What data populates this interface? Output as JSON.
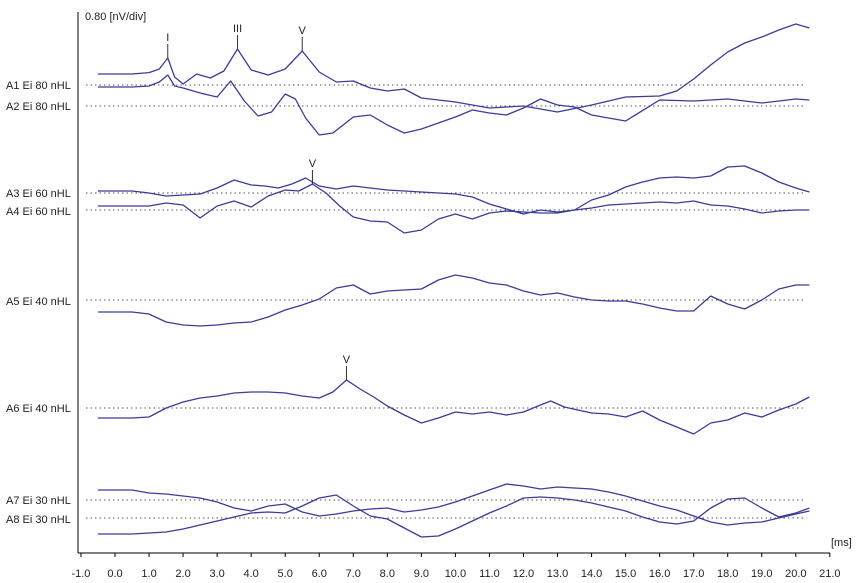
{
  "chart_data": {
    "type": "line",
    "title": "",
    "scale_label": "0.80 [nV/div]",
    "x_unit_label": "[ms]",
    "xlabel": "",
    "ylabel": "",
    "xlim": [
      -1.0,
      21.0
    ],
    "x_ticks": [
      {
        "value": -1.0,
        "label": "-1.0"
      },
      {
        "value": 0.0,
        "label": "0.0"
      },
      {
        "value": 1.0,
        "label": "1.0"
      },
      {
        "value": 2.0,
        "label": "2.0"
      },
      {
        "value": 3.0,
        "label": "3.0"
      },
      {
        "value": 4.0,
        "label": "4.0"
      },
      {
        "value": 5.0,
        "label": "5.0"
      },
      {
        "value": 6.0,
        "label": "6.0"
      },
      {
        "value": 7.0,
        "label": "7.0"
      },
      {
        "value": 8.0,
        "label": "8.0"
      },
      {
        "value": 9.0,
        "label": "9.0"
      },
      {
        "value": 10.0,
        "label": "10.0"
      },
      {
        "value": 11.0,
        "label": "11.0"
      },
      {
        "value": 12.0,
        "label": "12.0"
      },
      {
        "value": 13.0,
        "label": "13.0"
      },
      {
        "value": 14.0,
        "label": "14.0"
      },
      {
        "value": 15.0,
        "label": "15.0"
      },
      {
        "value": 16.0,
        "label": "16.0"
      },
      {
        "value": 17.0,
        "label": "17.0"
      },
      {
        "value": 18.0,
        "label": "18.0"
      },
      {
        "value": 19.0,
        "label": "19.0"
      },
      {
        "value": 20.0,
        "label": "20.0"
      },
      {
        "value": 21.0,
        "label": "21.0"
      }
    ],
    "grid": false,
    "trace_color": "#3b3b9a",
    "series": [
      {
        "name": "A1 Ei 80 nHL",
        "baseline_div": 0.0,
        "x": [
          -0.5,
          0.5,
          1.0,
          1.3,
          1.55,
          1.75,
          2.0,
          2.4,
          2.8,
          3.2,
          3.6,
          4.0,
          4.5,
          5.0,
          5.5,
          6.0,
          6.5,
          7.0,
          7.5,
          8.0,
          8.5,
          9.0,
          10.0,
          11.0,
          12.0,
          13.0,
          14.0,
          15.0,
          16.0,
          16.5,
          17.0,
          17.5,
          18.0,
          18.5,
          19.0,
          19.5,
          20.0,
          20.4
        ],
        "y": [
          0.55,
          0.55,
          0.62,
          0.8,
          1.35,
          0.4,
          0.05,
          0.55,
          0.35,
          0.7,
          1.8,
          0.75,
          0.5,
          0.8,
          1.7,
          0.65,
          0.15,
          0.2,
          -0.15,
          -0.3,
          -0.2,
          -0.65,
          -0.85,
          -1.15,
          -1.05,
          -1.35,
          -1.0,
          -0.6,
          -0.55,
          -0.3,
          0.3,
          1.0,
          1.65,
          2.1,
          2.4,
          2.75,
          3.05,
          2.85
        ]
      },
      {
        "name": "A2 Ei 80 nHL",
        "baseline_div": 0.0,
        "x": [
          -0.5,
          0.5,
          1.0,
          1.3,
          1.55,
          1.75,
          2.0,
          2.5,
          3.0,
          3.4,
          3.8,
          4.2,
          4.6,
          5.0,
          5.3,
          5.6,
          6.0,
          6.4,
          7.0,
          7.5,
          8.0,
          8.5,
          9.0,
          9.5,
          10.0,
          10.5,
          11.0,
          11.5,
          12.0,
          12.5,
          13.0,
          13.5,
          14.0,
          15.0,
          16.0,
          17.0,
          18.0,
          19.0,
          20.0,
          20.4
        ],
        "y": [
          0.95,
          0.95,
          1.0,
          1.2,
          1.55,
          1.0,
          0.9,
          0.65,
          0.45,
          1.25,
          0.25,
          -0.5,
          -0.3,
          0.6,
          0.35,
          -0.6,
          -1.45,
          -1.35,
          -0.55,
          -0.45,
          -0.95,
          -1.35,
          -1.15,
          -0.85,
          -0.55,
          -0.2,
          -0.35,
          -0.45,
          -0.1,
          0.35,
          0.05,
          -0.05,
          -0.45,
          -0.75,
          0.3,
          0.25,
          0.35,
          0.15,
          0.35,
          0.3
        ]
      },
      {
        "name": "A3 Ei 60 nHL",
        "baseline_div": 0.0,
        "x": [
          -0.5,
          0.5,
          1.0,
          1.5,
          2.0,
          2.5,
          3.0,
          3.5,
          4.0,
          4.4,
          4.8,
          5.2,
          5.6,
          6.0,
          6.5,
          7.0,
          8.0,
          9.0,
          10.0,
          10.5,
          11.0,
          11.5,
          12.0,
          12.5,
          13.0,
          13.5,
          14.0,
          14.5,
          15.0,
          15.5,
          16.0,
          16.5,
          17.0,
          17.5,
          18.0,
          18.5,
          19.0,
          19.5,
          20.0,
          20.4
        ],
        "y": [
          0.1,
          0.1,
          0.0,
          -0.15,
          -0.1,
          -0.05,
          0.25,
          0.65,
          0.4,
          0.35,
          0.25,
          0.45,
          0.75,
          0.35,
          0.2,
          0.35,
          0.15,
          0.05,
          -0.05,
          -0.2,
          -0.55,
          -0.8,
          -1.05,
          -0.85,
          -0.95,
          -0.85,
          -0.35,
          -0.1,
          0.3,
          0.55,
          0.75,
          0.8,
          0.75,
          0.85,
          1.3,
          1.35,
          1.0,
          0.55,
          0.25,
          0.05
        ]
      },
      {
        "name": "A4 Ei 60 nHL",
        "baseline_div": 0.0,
        "x": [
          -0.5,
          0.5,
          1.0,
          1.5,
          2.0,
          2.5,
          3.0,
          3.5,
          4.0,
          4.5,
          5.0,
          5.4,
          5.8,
          6.2,
          6.6,
          7.0,
          7.5,
          8.0,
          8.5,
          9.0,
          9.5,
          10.0,
          10.5,
          11.0,
          11.5,
          12.0,
          12.5,
          13.0,
          13.5,
          14.0,
          14.5,
          15.0,
          15.5,
          16.0,
          16.5,
          17.0,
          17.5,
          18.0,
          18.5,
          19.0,
          19.5,
          20.0,
          20.4
        ],
        "y": [
          0.2,
          0.2,
          0.2,
          0.35,
          0.25,
          -0.4,
          0.2,
          0.45,
          0.15,
          0.7,
          1.0,
          0.95,
          1.3,
          0.85,
          0.2,
          -0.35,
          -0.55,
          -0.6,
          -1.15,
          -1.0,
          -0.45,
          -0.2,
          -0.45,
          -0.15,
          -0.05,
          -0.1,
          -0.15,
          -0.15,
          0.0,
          0.1,
          0.25,
          0.3,
          0.35,
          0.4,
          0.35,
          0.45,
          0.25,
          0.2,
          0.05,
          -0.15,
          -0.05,
          0.0,
          0.0
        ]
      },
      {
        "name": "A5 Ei 40 nHL",
        "baseline_div": 0.0,
        "x": [
          -0.5,
          0.5,
          1.0,
          1.5,
          2.0,
          2.5,
          3.0,
          3.5,
          4.0,
          4.5,
          5.0,
          5.5,
          6.0,
          6.5,
          7.0,
          7.5,
          8.0,
          8.5,
          9.0,
          9.5,
          10.0,
          10.5,
          11.0,
          11.5,
          12.0,
          12.5,
          13.0,
          13.5,
          14.0,
          14.5,
          15.0,
          15.5,
          16.0,
          16.5,
          17.0,
          17.5,
          18.0,
          18.5,
          19.0,
          19.5,
          20.0,
          20.4
        ],
        "y": [
          -0.6,
          -0.6,
          -0.7,
          -1.1,
          -1.25,
          -1.3,
          -1.25,
          -1.15,
          -1.1,
          -0.85,
          -0.5,
          -0.25,
          0.05,
          0.6,
          0.75,
          0.3,
          0.45,
          0.5,
          0.55,
          1.0,
          1.25,
          1.1,
          0.85,
          0.75,
          0.45,
          0.25,
          0.35,
          0.15,
          0.0,
          -0.05,
          -0.05,
          -0.2,
          -0.4,
          -0.55,
          -0.55,
          0.2,
          -0.2,
          -0.45,
          0.0,
          0.55,
          0.75,
          0.75
        ]
      },
      {
        "name": "A6 Ei 40 nHL",
        "baseline_div": 0.0,
        "x": [
          -0.5,
          0.5,
          1.0,
          1.5,
          2.0,
          2.5,
          3.0,
          3.5,
          4.0,
          4.5,
          5.0,
          5.5,
          6.0,
          6.4,
          6.8,
          7.2,
          7.6,
          8.0,
          8.5,
          9.0,
          9.5,
          10.0,
          10.5,
          11.0,
          11.5,
          12.0,
          12.5,
          12.8,
          13.2,
          13.6,
          14.0,
          14.5,
          15.0,
          15.5,
          16.0,
          16.5,
          17.0,
          17.5,
          18.0,
          18.5,
          19.0,
          19.5,
          20.0,
          20.4
        ],
        "y": [
          -0.5,
          -0.5,
          -0.45,
          0.0,
          0.3,
          0.5,
          0.6,
          0.75,
          0.8,
          0.8,
          0.75,
          0.6,
          0.5,
          0.8,
          1.4,
          0.95,
          0.55,
          0.1,
          -0.35,
          -0.75,
          -0.5,
          -0.2,
          -0.3,
          -0.2,
          -0.35,
          -0.2,
          0.15,
          0.35,
          0.05,
          -0.1,
          -0.25,
          -0.3,
          -0.45,
          -0.15,
          -0.6,
          -0.95,
          -1.3,
          -0.75,
          -0.6,
          -0.25,
          -0.45,
          -0.1,
          0.2,
          0.55
        ]
      },
      {
        "name": "A7 Ei 30 nHL",
        "baseline_div": 0.0,
        "x": [
          -0.5,
          0.5,
          1.0,
          1.5,
          2.0,
          2.5,
          3.0,
          3.5,
          4.0,
          4.5,
          5.0,
          5.5,
          6.0,
          6.5,
          7.0,
          7.5,
          8.0,
          8.5,
          9.0,
          9.5,
          10.0,
          10.5,
          11.0,
          11.5,
          12.0,
          12.5,
          13.0,
          13.5,
          14.0,
          14.5,
          15.0,
          15.5,
          16.0,
          16.5,
          17.0,
          17.5,
          18.0,
          18.5,
          19.0,
          19.5,
          20.0,
          20.4
        ],
        "y": [
          0.5,
          0.5,
          0.35,
          0.3,
          0.2,
          0.1,
          -0.1,
          -0.4,
          -0.55,
          -0.3,
          -0.2,
          -0.6,
          -0.8,
          -0.7,
          -0.55,
          -0.45,
          -0.4,
          -0.6,
          -0.5,
          -0.35,
          -0.1,
          0.2,
          0.5,
          0.8,
          0.7,
          0.55,
          0.65,
          0.6,
          0.55,
          0.4,
          0.2,
          -0.05,
          -0.3,
          -0.5,
          -0.8,
          -1.1,
          -1.25,
          -1.15,
          -1.1,
          -0.9,
          -0.7,
          -0.55
        ]
      },
      {
        "name": "A8 Ei 30 nHL",
        "baseline_div": 0.0,
        "x": [
          -0.5,
          0.5,
          1.0,
          1.5,
          2.0,
          2.5,
          3.0,
          3.5,
          4.0,
          4.5,
          5.0,
          5.5,
          6.0,
          6.5,
          7.0,
          7.5,
          8.0,
          8.5,
          9.0,
          9.5,
          10.0,
          10.5,
          11.0,
          11.5,
          12.0,
          12.5,
          13.0,
          13.5,
          14.0,
          14.5,
          15.0,
          15.5,
          16.0,
          16.5,
          17.0,
          17.5,
          18.0,
          18.5,
          19.0,
          19.5,
          20.0,
          20.4
        ],
        "y": [
          -0.8,
          -0.8,
          -0.75,
          -0.7,
          -0.55,
          -0.35,
          -0.15,
          0.05,
          0.25,
          0.3,
          0.25,
          0.6,
          1.0,
          1.15,
          0.6,
          0.1,
          -0.05,
          -0.5,
          -0.95,
          -0.9,
          -0.55,
          -0.15,
          0.25,
          0.6,
          1.0,
          1.05,
          1.0,
          0.9,
          0.75,
          0.55,
          0.35,
          0.05,
          -0.2,
          -0.3,
          -0.15,
          0.5,
          0.95,
          1.0,
          0.5,
          0.05,
          0.25,
          0.5
        ]
      }
    ],
    "trace_labels": [
      "A1 Ei 80 nHL",
      "A2 Ei 80 nHL",
      "A3 Ei 60 nHL",
      "A4 Ei 60 nHL",
      "A5 Ei 40 nHL",
      "A6 Ei 40 nHL",
      "A7 Ei 30 nHL",
      "A8 Ei 30 nHL"
    ],
    "peak_markers": [
      {
        "label": "I",
        "trace": 0,
        "x": 1.55
      },
      {
        "label": "III",
        "trace": 0,
        "x": 3.6
      },
      {
        "label": "V",
        "trace": 0,
        "x": 5.5
      },
      {
        "label": "V",
        "trace": 3,
        "x": 5.8
      },
      {
        "label": "V",
        "trace": 5,
        "x": 6.8
      }
    ]
  }
}
